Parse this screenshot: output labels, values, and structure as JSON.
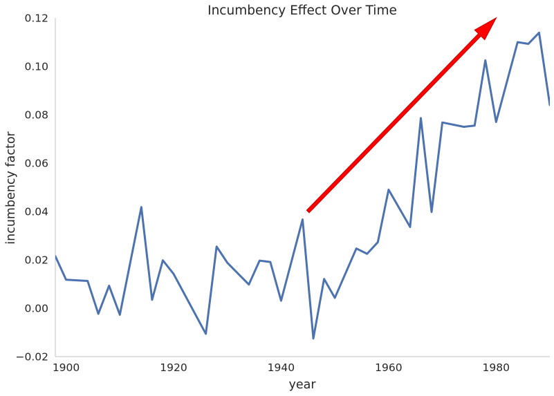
{
  "chart_data": {
    "type": "line",
    "title": "Incumbency Effect Over Time",
    "xlabel": "year",
    "ylabel": "incumbency factor",
    "xlim": [
      1898,
      1990
    ],
    "ylim": [
      -0.02,
      0.12
    ],
    "xticks": [
      1900,
      1920,
      1940,
      1960,
      1980
    ],
    "xtick_labels": [
      "1900",
      "1920",
      "1940",
      "1960",
      "1980"
    ],
    "yticks": [
      -0.02,
      0.0,
      0.02,
      0.04,
      0.06,
      0.08,
      0.1,
      0.12
    ],
    "ytick_labels": [
      "−0.02",
      "0.00",
      "0.02",
      "0.04",
      "0.06",
      "0.08",
      "0.10",
      "0.12"
    ],
    "grid": false,
    "series": [
      {
        "color": "#4c72b0",
        "x": [
          1898,
          1900,
          1904,
          1906,
          1908,
          1910,
          1914,
          1916,
          1918,
          1920,
          1926,
          1928,
          1930,
          1934,
          1936,
          1938,
          1940,
          1944,
          1946,
          1948,
          1950,
          1954,
          1956,
          1958,
          1960,
          1964,
          1966,
          1968,
          1970,
          1974,
          1976,
          1978,
          1980,
          1984,
          1986,
          1988,
          1990
        ],
        "y": [
          0.0215,
          0.0118,
          0.0113,
          -0.0023,
          0.0093,
          -0.0027,
          0.0418,
          0.0035,
          0.0198,
          0.0142,
          -0.0106,
          0.0255,
          0.0188,
          0.0098,
          0.0197,
          0.0191,
          0.0031,
          0.0367,
          -0.0125,
          0.0121,
          0.0043,
          0.0247,
          0.0225,
          0.0273,
          0.049,
          0.0336,
          0.0786,
          0.0398,
          0.0768,
          0.075,
          0.0755,
          0.1025,
          0.077,
          0.11,
          0.1093,
          0.1139,
          0.084
        ]
      }
    ],
    "annotations": [
      {
        "type": "arrow",
        "color": "#ff0000",
        "edge_color": "#cc0000",
        "from": [
          1945,
          0.04
        ],
        "to": [
          1980,
          0.12
        ]
      }
    ]
  }
}
